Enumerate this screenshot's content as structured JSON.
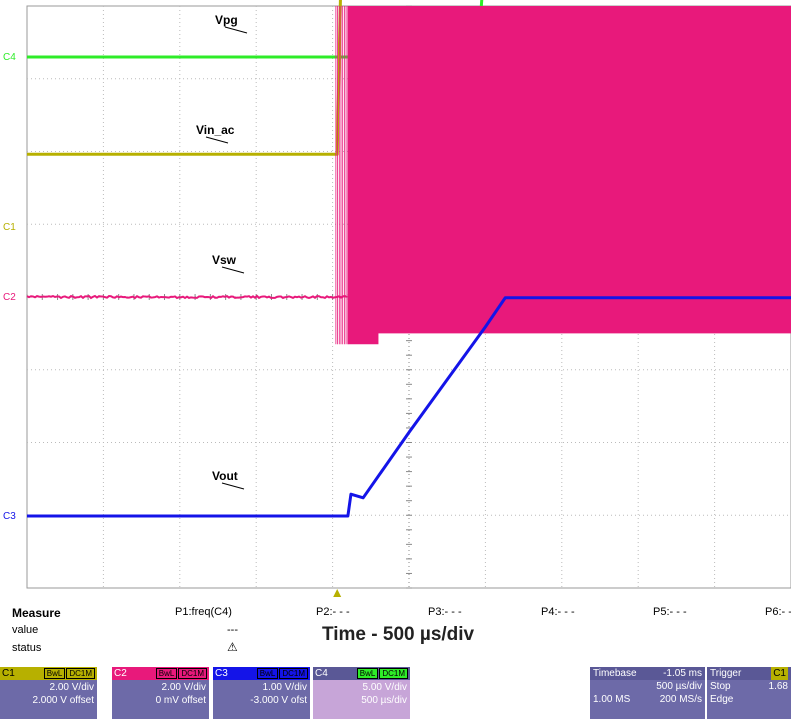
{
  "chart_data": {
    "type": "line",
    "title": "Time - 500 µs/div",
    "x_unit": "µs",
    "x_per_div": 500,
    "xlim": [
      -2500,
      2500
    ],
    "ylim_div": [
      -4,
      4
    ],
    "grid": true,
    "series": [
      {
        "name": "Vpg",
        "channel": "C4",
        "color": "#2eec28",
        "volts_per_div": 5.0,
        "x": [
          -2500,
          -470,
          -470,
          400,
          450,
          500,
          2500
        ],
        "y": [
          0.0,
          0.0,
          0.0,
          0.0,
          0.0,
          7.5,
          7.5
        ]
      },
      {
        "name": "Vin_ac",
        "channel": "C1",
        "color": "#b7b000",
        "volts_per_div": 2.0,
        "x": [
          -2500,
          -470,
          -460,
          -440,
          -420,
          -400,
          2500
        ],
        "y": [
          2.0,
          2.0,
          4.0,
          8.0,
          12.6,
          12.0,
          11.8
        ]
      },
      {
        "name": "Vsw",
        "channel": "C2",
        "color": "#e8197b",
        "volts_per_div": 2.0,
        "switching_from_x": -400,
        "x": [
          -2500,
          -430,
          -400,
          2500
        ],
        "y": [
          0.0,
          0.0,
          0.0,
          0.0
        ],
        "switching_high": [
          8.0,
          8.0
        ],
        "switching_low": [
          -1.3,
          -1.0
        ]
      },
      {
        "name": "Vout",
        "channel": "C3",
        "color": "#1414e8",
        "volts_per_div": 1.0,
        "x": [
          -2500,
          -400,
          -380,
          -300,
          0,
          500,
          630,
          2500
        ],
        "y": [
          0.0,
          0.0,
          0.3,
          0.25,
          1.15,
          2.6,
          3.0,
          3.0
        ]
      }
    ],
    "cursor_labels": [
      "Vpg",
      "Vin_ac",
      "Vsw",
      "Vout"
    ],
    "channel_markers": [
      "C4",
      "C1",
      "C2",
      "C3"
    ]
  },
  "measure": {
    "title": "Measure",
    "rows": [
      "value",
      "status"
    ],
    "params": [
      "P1:freq(C4)",
      "P2:- - -",
      "P3:- - -",
      "P4:- - -",
      "P5:- - -",
      "P6:- -"
    ],
    "p1_value": "---",
    "p1_status_icon": "warning-triangle-icon"
  },
  "time_label": "Time - 500 µs/div",
  "channels": [
    {
      "id": "C1",
      "tags": [
        "BwL",
        "DC1M"
      ],
      "vdiv": "2.00 V/div",
      "offset": "2.000 V offset",
      "color": "#b7b000"
    },
    {
      "id": "C2",
      "tags": [
        "BwL",
        "DC1M"
      ],
      "vdiv": "2.00 V/div",
      "offset": "0 mV offset",
      "color": "#e8197b"
    },
    {
      "id": "C3",
      "tags": [
        "BwL",
        "DC1M"
      ],
      "vdiv": "1.00 V/div",
      "offset": "-3.000 V ofst",
      "color": "#1414e8"
    },
    {
      "id": "C4",
      "tags": [
        "BwL",
        "DC1M"
      ],
      "vdiv": "5.00 V/div",
      "offset": "500 µs/div",
      "color": "#2eec28"
    }
  ],
  "timebase": {
    "label": "Timebase",
    "value": "-1.05 ms",
    "per_div": "500 µs/div",
    "samples": "1.00 MS",
    "rate": "200 MS/s"
  },
  "trigger": {
    "label": "Trigger",
    "source": "C1",
    "mode": "Stop",
    "type": "Edge",
    "level": "1.68"
  }
}
